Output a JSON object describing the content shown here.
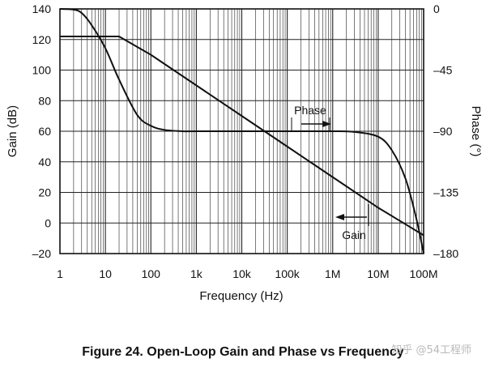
{
  "chart_data": {
    "type": "line",
    "title": "Figure 24. Open-Loop Gain and Phase vs Frequency",
    "xlabel": "Frequency (Hz)",
    "ylabel": "Gain (dB)",
    "y2label": "Phase (°)",
    "xscale": "log",
    "xlim": [
      1,
      100000000
    ],
    "ylim": [
      -20,
      140
    ],
    "y2lim": [
      -180,
      0
    ],
    "grid": true,
    "x_ticks": [
      {
        "value": 1,
        "label": "1"
      },
      {
        "value": 10,
        "label": "10"
      },
      {
        "value": 100,
        "label": "100"
      },
      {
        "value": 1000,
        "label": "1k"
      },
      {
        "value": 10000,
        "label": "10k"
      },
      {
        "value": 100000,
        "label": "100k"
      },
      {
        "value": 1000000,
        "label": "1M"
      },
      {
        "value": 10000000,
        "label": "10M"
      },
      {
        "value": 100000000,
        "label": "100M"
      }
    ],
    "y_ticks": [
      {
        "value": 140,
        "label": "140"
      },
      {
        "value": 120,
        "label": "120"
      },
      {
        "value": 100,
        "label": "100"
      },
      {
        "value": 80,
        "label": "80"
      },
      {
        "value": 60,
        "label": "60"
      },
      {
        "value": 40,
        "label": "40"
      },
      {
        "value": 20,
        "label": "20"
      },
      {
        "value": 0,
        "label": "0"
      },
      {
        "value": -20,
        "label": "–20"
      }
    ],
    "y2_ticks": [
      {
        "value": 0,
        "label": "0"
      },
      {
        "value": -45,
        "label": "–45"
      },
      {
        "value": -90,
        "label": "–90"
      },
      {
        "value": -135,
        "label": "–135"
      },
      {
        "value": -180,
        "label": "–180"
      }
    ],
    "series": [
      {
        "name": "Gain",
        "axis": "left",
        "label": "Gain",
        "points": [
          [
            1,
            122
          ],
          [
            10,
            122
          ],
          [
            20,
            122
          ],
          [
            100,
            110
          ],
          [
            1000,
            90
          ],
          [
            10000,
            70
          ],
          [
            100000,
            50
          ],
          [
            1000000,
            30
          ],
          [
            10000000,
            10
          ],
          [
            100000000,
            -8
          ]
        ]
      },
      {
        "name": "Phase",
        "axis": "right",
        "label": "Phase",
        "points": [
          [
            1,
            0
          ],
          [
            2,
            -0.5
          ],
          [
            3,
            -3
          ],
          [
            5,
            -12
          ],
          [
            10,
            -29
          ],
          [
            20,
            -52
          ],
          [
            50,
            -78
          ],
          [
            100,
            -86
          ],
          [
            200,
            -89
          ],
          [
            500,
            -90
          ],
          [
            1000,
            -90
          ],
          [
            100000,
            -90
          ],
          [
            1000000,
            -90
          ],
          [
            3000000,
            -90.5
          ],
          [
            10000000,
            -94
          ],
          [
            20000000,
            -104
          ],
          [
            40000000,
            -125
          ],
          [
            70000000,
            -155
          ],
          [
            100000000,
            -180
          ]
        ]
      }
    ],
    "annotations": [
      {
        "text": "Phase",
        "points_to": "right-axis"
      },
      {
        "text": "Gain",
        "points_to": "left-axis"
      }
    ]
  },
  "watermark": "知乎 @54工程师"
}
